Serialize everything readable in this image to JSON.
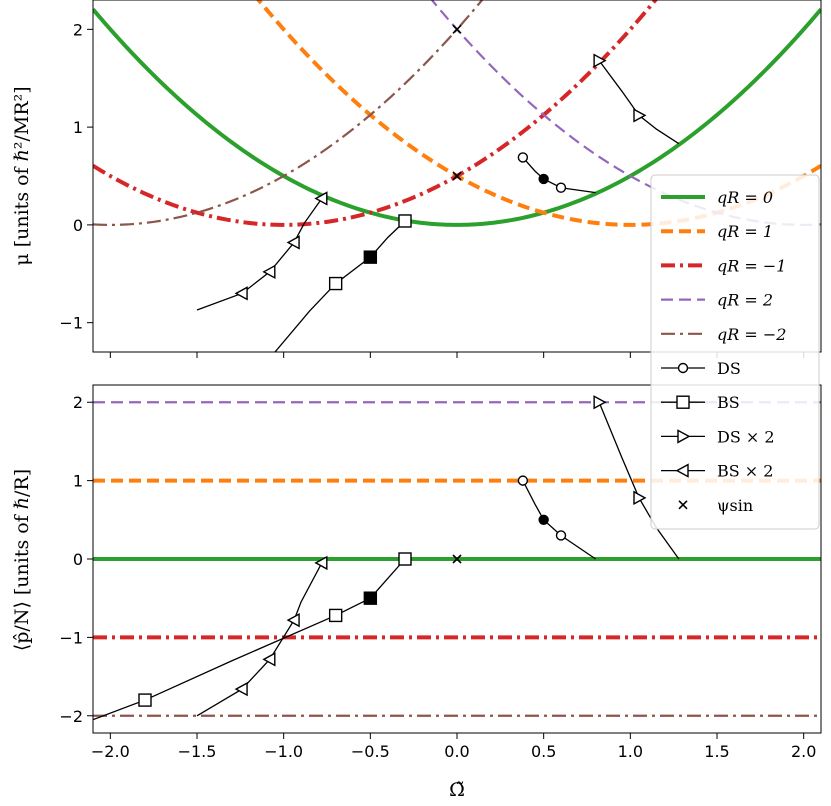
{
  "chart_data": [
    {
      "type": "line",
      "panel": "top",
      "ylabel": "μ [units of ℏ²/MR²]",
      "xlabel": "",
      "xlim": [
        -2.1,
        2.1
      ],
      "ylim": [
        -1.3,
        2.3
      ],
      "xticks": [
        -2.0,
        -1.5,
        -1.0,
        -0.5,
        0.0,
        0.5,
        1.0,
        1.5,
        2.0
      ],
      "yticks": [
        -1,
        0,
        1,
        2
      ],
      "ytick_labels": [
        "−1",
        "0",
        "1",
        "2"
      ],
      "series": [
        {
          "name": "qR = 0",
          "q": 0,
          "color": "#2ca02c",
          "style": "solid",
          "width": "thick"
        },
        {
          "name": "qR = 1",
          "q": 1,
          "color": "#ff7f0e",
          "style": "dashed",
          "width": "thick"
        },
        {
          "name": "qR = −1",
          "q": -1,
          "color": "#d62728",
          "style": "dashdot",
          "width": "thick"
        },
        {
          "name": "qR = 2",
          "q": 2,
          "color": "#9467bd",
          "style": "dashed",
          "width": "thin"
        },
        {
          "name": "qR = −2",
          "q": -2,
          "color": "#8c564b",
          "style": "dashdot",
          "width": "thin"
        }
      ],
      "DS": {
        "x": [
          0.38,
          0.45,
          0.5,
          0.6,
          0.8
        ],
        "y": [
          0.69,
          0.55,
          0.47,
          0.38,
          0.33
        ],
        "markers_open": [
          0.38,
          0.6
        ],
        "markers_filled": [
          0.5
        ]
      },
      "BS": {
        "x": [
          -0.3,
          -0.4,
          -0.5,
          -0.7,
          -0.85,
          -1.05
        ],
        "y": [
          0.04,
          -0.13,
          -0.33,
          -0.6,
          -0.88,
          -1.3
        ],
        "markers_open": [
          -0.3,
          -0.7
        ],
        "markers_filled": [
          -0.5
        ]
      },
      "DSx2": {
        "x": [
          0.82,
          0.95,
          1.05,
          1.15,
          1.28
        ],
        "y": [
          1.68,
          1.37,
          1.12,
          0.98,
          0.83
        ],
        "markers_open": [
          0.82,
          1.05
        ]
      },
      "BSx2": {
        "x": [
          -0.78,
          -0.88,
          -0.94,
          -1.08,
          -1.24,
          -1.5
        ],
        "y": [
          0.27,
          0.02,
          -0.18,
          -0.48,
          -0.7,
          -0.87
        ],
        "markers_open": [
          -0.78,
          -0.94,
          -1.08,
          -1.24
        ]
      },
      "psi_sin": {
        "x": [
          0.0,
          0.0
        ],
        "y": [
          2.0,
          0.5
        ]
      }
    },
    {
      "type": "line",
      "panel": "bottom",
      "xlabel": "Ω̃",
      "ylabel": "⟨p̂/N⟩ [units of ℏ/R]",
      "xlim": [
        -2.1,
        2.1
      ],
      "ylim": [
        -2.22,
        2.22
      ],
      "xticks": [
        -2.0,
        -1.5,
        -1.0,
        -0.5,
        0.0,
        0.5,
        1.0,
        1.5,
        2.0
      ],
      "xtick_labels": [
        "−2.0",
        "−1.5",
        "−1.0",
        "−0.5",
        "0.0",
        "0.5",
        "1.0",
        "1.5",
        "2.0"
      ],
      "yticks": [
        -2,
        -1,
        0,
        1,
        2
      ],
      "ytick_labels": [
        "−2",
        "−1",
        "0",
        "1",
        "2"
      ],
      "hlines": [
        {
          "name": "qR = 0",
          "y": 0,
          "color": "#2ca02c",
          "style": "solid",
          "width": "thick"
        },
        {
          "name": "qR = 1",
          "y": 1,
          "color": "#ff7f0e",
          "style": "dashed",
          "width": "thick"
        },
        {
          "name": "qR = −1",
          "y": -1,
          "color": "#d62728",
          "style": "dashdot",
          "width": "thick"
        },
        {
          "name": "qR = 2",
          "y": 2,
          "color": "#9467bd",
          "style": "dashed",
          "width": "thin"
        },
        {
          "name": "qR = −2",
          "y": -2,
          "color": "#8c564b",
          "style": "dashdot",
          "width": "thin"
        }
      ],
      "DS": {
        "x": [
          0.38,
          0.45,
          0.5,
          0.6,
          0.8
        ],
        "y": [
          1.0,
          0.7,
          0.5,
          0.3,
          0.0
        ],
        "markers_open": [
          0.38,
          0.6
        ],
        "markers_filled": [
          0.5
        ]
      },
      "BS": {
        "x": [
          -0.3,
          -0.4,
          -0.5,
          -0.7,
          -1.3,
          -1.8,
          -2.1
        ],
        "y": [
          0.0,
          -0.25,
          -0.5,
          -0.72,
          -1.3,
          -1.8,
          -2.05
        ],
        "markers_open": [
          -0.3,
          -0.7,
          -1.8
        ],
        "markers_filled": [
          -0.5
        ]
      },
      "DSx2": {
        "x": [
          0.82,
          0.95,
          1.05,
          1.15,
          1.28
        ],
        "y": [
          2.0,
          1.3,
          0.78,
          0.4,
          0.0
        ],
        "markers_open": [
          0.82,
          1.05
        ]
      },
      "BSx2": {
        "x": [
          -0.78,
          -0.9,
          -0.94,
          -1.08,
          -1.24,
          -1.5
        ],
        "y": [
          -0.05,
          -0.55,
          -0.78,
          -1.28,
          -1.66,
          -2.0
        ],
        "markers_open": [
          -0.78,
          -0.94,
          -1.08,
          -1.24
        ]
      },
      "psi_sin": {
        "x": [
          0.0
        ],
        "y": [
          0.0
        ]
      }
    }
  ],
  "legend": [
    {
      "label": "qR = 0",
      "kind": "line",
      "color": "#2ca02c",
      "style": "solid",
      "width": "thick"
    },
    {
      "label": "qR = 1",
      "kind": "line",
      "color": "#ff7f0e",
      "style": "dashed",
      "width": "thick"
    },
    {
      "label": "qR = −1",
      "kind": "line",
      "color": "#d62728",
      "style": "dashdot",
      "width": "thick"
    },
    {
      "label": "qR = 2",
      "kind": "line",
      "color": "#9467bd",
      "style": "dashed",
      "width": "thin"
    },
    {
      "label": "qR = −2",
      "kind": "line",
      "color": "#8c564b",
      "style": "dashdot",
      "width": "thin"
    },
    {
      "label": "DS",
      "kind": "marker",
      "marker": "circle"
    },
    {
      "label": "BS",
      "kind": "marker",
      "marker": "square"
    },
    {
      "label": "DS × 2",
      "kind": "marker",
      "marker": "tri-right"
    },
    {
      "label": "BS × 2",
      "kind": "marker",
      "marker": "tri-left"
    },
    {
      "label": "ψsin",
      "kind": "marker",
      "marker": "x"
    }
  ]
}
